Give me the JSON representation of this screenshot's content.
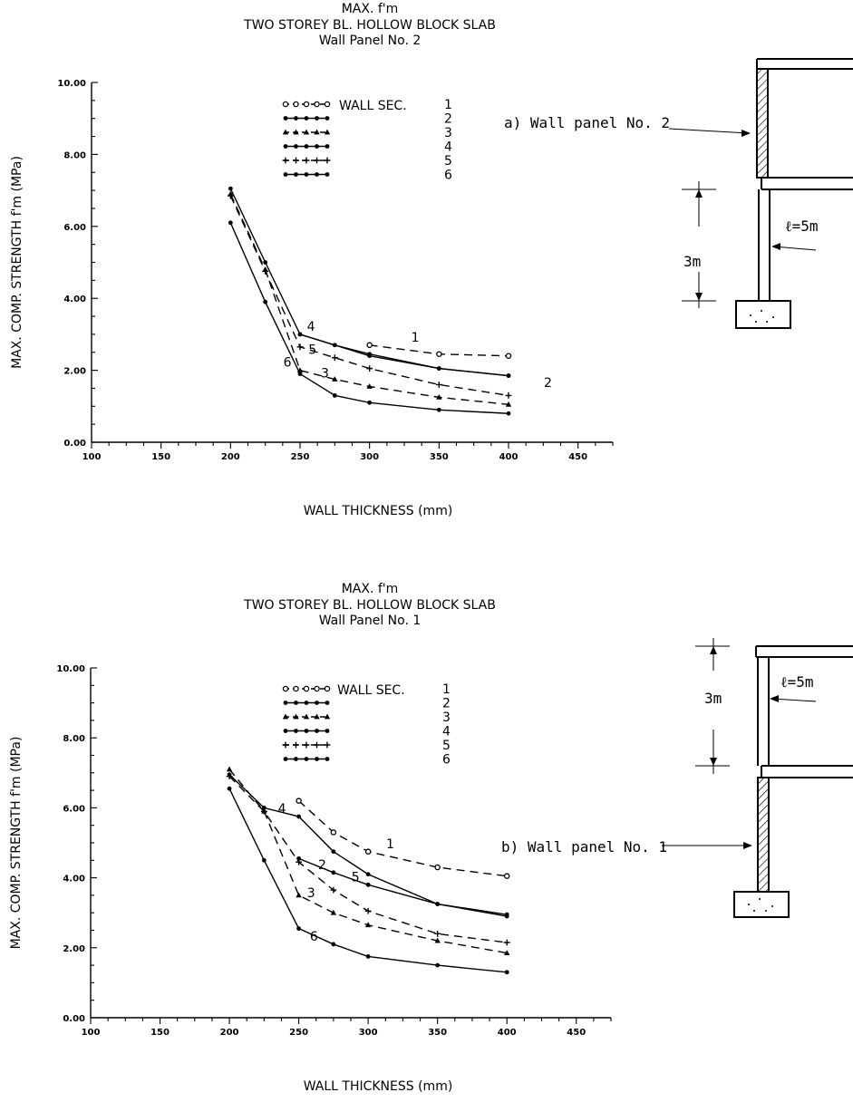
{
  "charts": [
    {
      "id": "a",
      "title_line1": "MAX.   f'm",
      "title_line2": "TWO STOREY BL.    HOLLOW BLOCK SLAB",
      "title_line3": "Wall Panel No. 2",
      "caption": "a) Wall panel No. 2",
      "ell_label": "ℓ=5m",
      "height_label": "3m",
      "side_label": "2"
    },
    {
      "id": "b",
      "title_line1": "MAX.   f'm",
      "title_line2": "TWO STOREY BL.    HOLLOW BLOCK SLAB",
      "title_line3": "Wall Panel No. 1",
      "caption": "b) Wall panel No. 1",
      "ell_label": "ℓ=5m",
      "height_label": "3m",
      "side_label": ""
    }
  ],
  "legend": {
    "heading": "WALL SEC.",
    "entries": [
      "1",
      "2",
      "3",
      "4",
      "5",
      "6"
    ]
  },
  "chart_data": [
    {
      "type": "line",
      "title": "MAX. f'm TWO STOREY BL. HOLLOW BLOCK SLAB Wall Panel No. 2",
      "xlabel": "WALL THICKNESS    (mm)",
      "ylabel": "MAX. COMP. STRENGTH f'm  (MPa)",
      "xlim": [
        100,
        475
      ],
      "ylim": [
        0,
        10
      ],
      "xticks": [
        "100",
        "150",
        "200",
        "250",
        "300",
        "350",
        "400",
        "450"
      ],
      "yticks": [
        "0.00",
        "2.00",
        "4.00",
        "6.00",
        "8.00",
        "10.00"
      ],
      "series": [
        {
          "name": "1",
          "dashed": true,
          "marker": "circle",
          "x": [
            300,
            350,
            400
          ],
          "y": [
            2.7,
            2.45,
            2.4
          ],
          "label_pos": [
            330,
            2.8
          ]
        },
        {
          "name": "2",
          "dashed": false,
          "marker": "dot",
          "x": [
            250,
            300,
            350,
            400
          ],
          "y": [
            3.0,
            2.4,
            2.05,
            1.85
          ]
        },
        {
          "name": "3",
          "dashed": true,
          "marker": "triangle",
          "x": [
            200,
            225,
            250,
            275,
            300,
            350,
            400
          ],
          "y": [
            6.9,
            4.8,
            2.0,
            1.75,
            1.55,
            1.25,
            1.05
          ],
          "label_pos": [
            265,
            1.8
          ]
        },
        {
          "name": "4",
          "dashed": false,
          "marker": "dot",
          "x": [
            200,
            225,
            250,
            275,
            300,
            350,
            400
          ],
          "y": [
            7.05,
            5.0,
            3.0,
            2.7,
            2.45,
            2.05,
            1.85
          ],
          "label_pos": [
            255,
            3.1
          ]
        },
        {
          "name": "5",
          "dashed": true,
          "marker": "plus",
          "x": [
            200,
            225,
            250,
            275,
            300,
            350,
            400
          ],
          "y": [
            6.85,
            4.75,
            2.65,
            2.35,
            2.05,
            1.6,
            1.3
          ],
          "label_pos": [
            256,
            2.45
          ]
        },
        {
          "name": "6",
          "dashed": false,
          "marker": "dot",
          "x": [
            200,
            225,
            250,
            275,
            300,
            350,
            400
          ],
          "y": [
            6.1,
            3.9,
            1.9,
            1.3,
            1.1,
            0.9,
            0.8
          ],
          "label_pos": [
            238,
            2.1
          ]
        }
      ]
    },
    {
      "type": "line",
      "title": "MAX. f'm TWO STOREY BL. HOLLOW BLOCK SLAB Wall Panel No. 1",
      "xlabel": "WALL THICKNESS    (mm)",
      "ylabel": "MAX. COMP. STRENGTH f'm  (MPa)",
      "xlim": [
        100,
        475
      ],
      "ylim": [
        0,
        10
      ],
      "xticks": [
        "100",
        "150",
        "200",
        "250",
        "300",
        "350",
        "400",
        "450"
      ],
      "yticks": [
        "0.00",
        "2.00",
        "4.00",
        "6.00",
        "8.00",
        "10.00"
      ],
      "series": [
        {
          "name": "1",
          "dashed": true,
          "marker": "circle",
          "x": [
            250,
            275,
            300,
            350,
            400
          ],
          "y": [
            6.2,
            5.3,
            4.75,
            4.3,
            4.05
          ],
          "label_pos": [
            313,
            4.85
          ]
        },
        {
          "name": "2",
          "dashed": false,
          "marker": "dot",
          "x": [
            250,
            275,
            300,
            350,
            400
          ],
          "y": [
            4.55,
            4.15,
            3.8,
            3.25,
            2.95
          ],
          "label_pos": [
            264,
            4.25
          ]
        },
        {
          "name": "3",
          "dashed": true,
          "marker": "triangle",
          "x": [
            200,
            225,
            250,
            275,
            300,
            350,
            400
          ],
          "y": [
            7.1,
            5.9,
            3.5,
            3.0,
            2.65,
            2.2,
            1.85
          ],
          "label_pos": [
            256,
            3.45
          ]
        },
        {
          "name": "4",
          "dashed": false,
          "marker": "dot",
          "x": [
            200,
            225,
            250,
            275,
            300,
            350,
            400
          ],
          "y": [
            6.95,
            6.0,
            5.75,
            4.75,
            4.1,
            3.25,
            2.9
          ],
          "label_pos": [
            235,
            5.85
          ]
        },
        {
          "name": "5",
          "dashed": true,
          "marker": "plus",
          "x": [
            200,
            225,
            250,
            275,
            300,
            350,
            400
          ],
          "y": [
            6.9,
            5.9,
            4.45,
            3.65,
            3.05,
            2.4,
            2.15
          ],
          "label_pos": [
            288,
            3.9
          ]
        },
        {
          "name": "6",
          "dashed": false,
          "marker": "dot",
          "x": [
            200,
            225,
            250,
            275,
            300,
            350,
            400
          ],
          "y": [
            6.55,
            4.5,
            2.55,
            2.1,
            1.75,
            1.5,
            1.3
          ],
          "label_pos": [
            258,
            2.2
          ]
        }
      ]
    }
  ]
}
